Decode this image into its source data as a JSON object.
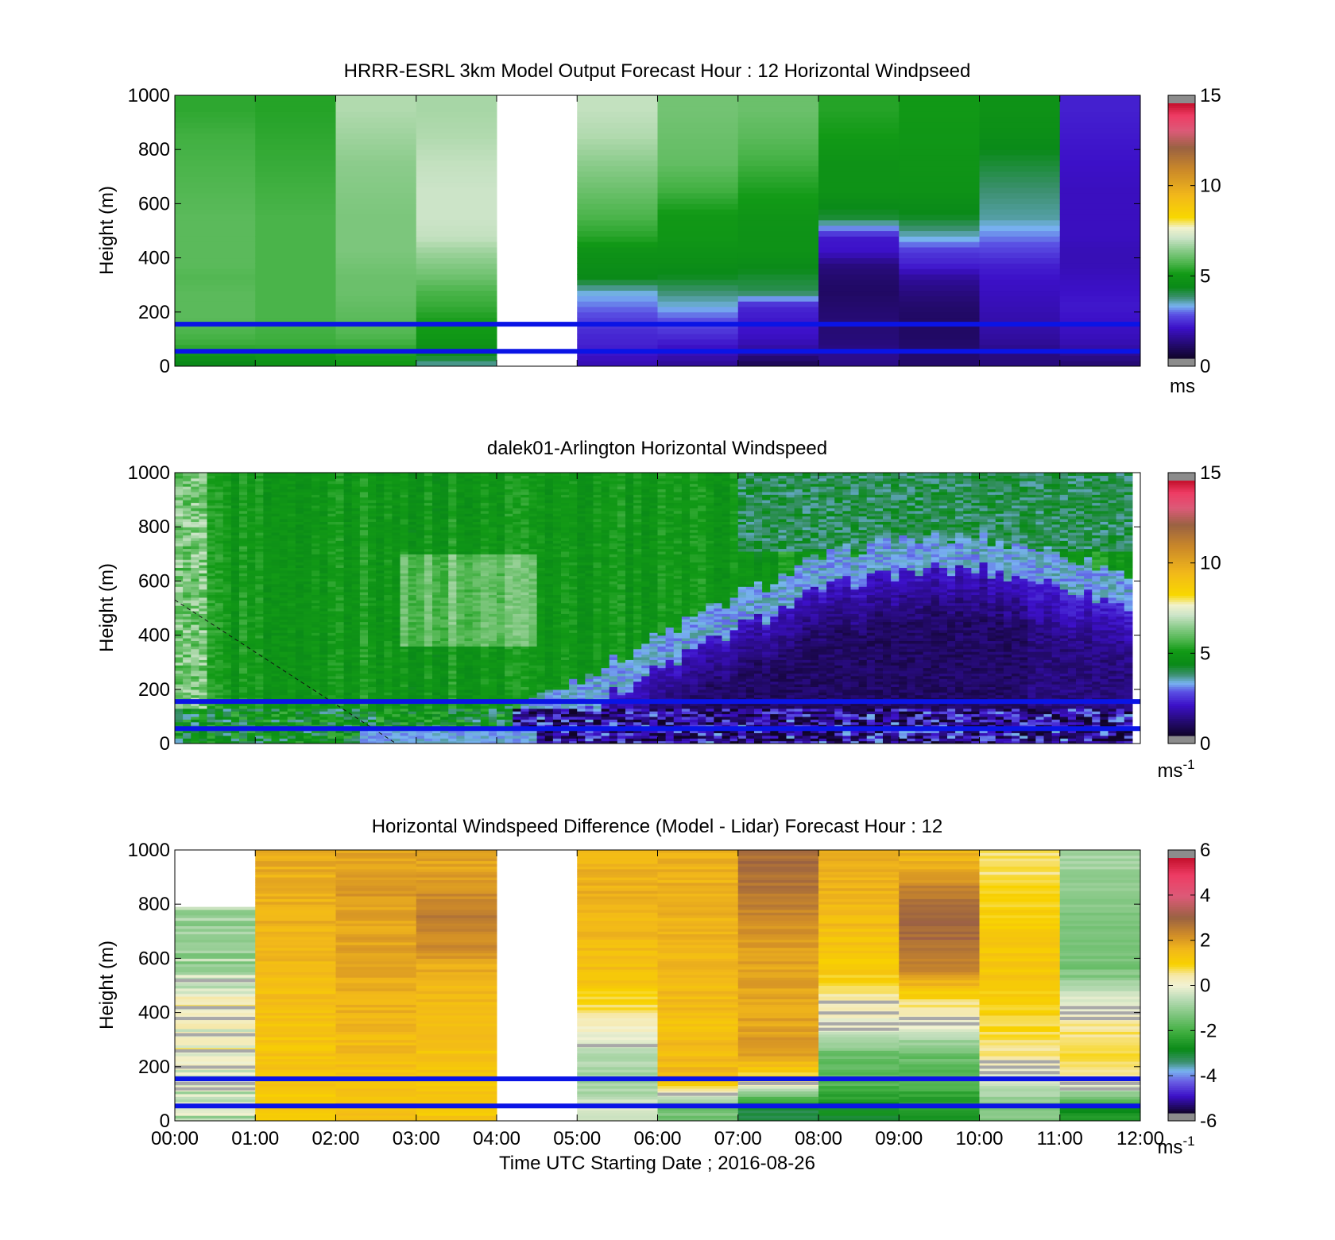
{
  "chart_data": [
    {
      "type": "heatmap",
      "title": "HRRR-ESRL 3km Model Output   Forecast Hour : 12 Horizontal Windpseed",
      "ylabel": "Height (m)",
      "xlabel": "",
      "ylim": [
        0,
        1000
      ],
      "yticks": [
        "0",
        "200",
        "400",
        "600",
        "800",
        "1000"
      ],
      "xlim_hours": [
        0,
        12
      ],
      "colorbar": {
        "min": 0,
        "max": 15,
        "ticks": [
          "0",
          "5",
          "10",
          "15"
        ],
        "unit": "ms",
        "unit_sup": ""
      },
      "reference_lines_m": [
        155,
        55
      ],
      "heights_m": [
        0,
        30,
        60,
        90,
        150,
        200,
        250,
        300,
        350,
        400,
        450,
        500,
        600,
        700,
        800,
        900,
        1000
      ],
      "columns": [
        {
          "start": 0,
          "end": 1,
          "values": [
            4.2,
            4.8,
            5.4,
            5.6,
            5.8,
            5.8,
            5.8,
            5.7,
            5.8,
            5.8,
            5.8,
            5.8,
            5.7,
            5.6,
            5.5,
            5.3
          ]
        },
        {
          "start": 1,
          "end": 2,
          "values": [
            4.6,
            4.9,
            5.4,
            5.5,
            5.6,
            5.6,
            5.6,
            5.6,
            5.6,
            5.6,
            5.6,
            5.6,
            5.5,
            5.4,
            5.3,
            5.2
          ]
        },
        {
          "start": 2,
          "end": 3,
          "values": [
            5.0,
            5.1,
            5.4,
            5.7,
            5.8,
            5.9,
            6.0,
            6.0,
            6.1,
            6.2,
            6.2,
            6.2,
            6.3,
            6.4,
            6.6,
            6.8
          ]
        },
        {
          "start": 3,
          "end": 4,
          "values": [
            3.5,
            4.4,
            4.6,
            4.9,
            5.1,
            5.4,
            5.6,
            6.0,
            6.3,
            6.6,
            7.0,
            7.1,
            7.1,
            7.0,
            6.8,
            6.7
          ]
        },
        {
          "start": 4,
          "end": 5,
          "values": []
        },
        {
          "start": 5,
          "end": 6,
          "values": [
            1.6,
            1.8,
            2.0,
            2.1,
            2.4,
            2.8,
            3.2,
            4.2,
            4.4,
            4.6,
            5.2,
            5.6,
            6.0,
            6.4,
            6.8,
            7.0
          ]
        },
        {
          "start": 6,
          "end": 7,
          "values": [
            1.3,
            1.6,
            1.8,
            2.2,
            2.6,
            3.2,
            3.6,
            4.1,
            4.4,
            4.6,
            4.8,
            4.9,
            5.5,
            5.9,
            6.0,
            6.1
          ]
        },
        {
          "start": 7,
          "end": 8,
          "values": [
            0.6,
            1.1,
            1.5,
            1.8,
            1.9,
            2.1,
            3.8,
            4.0,
            4.3,
            4.6,
            4.6,
            4.7,
            5.1,
            5.5,
            5.8,
            6.0
          ]
        },
        {
          "start": 8,
          "end": 9,
          "values": [
            1.1,
            1.2,
            1.0,
            0.9,
            0.9,
            0.8,
            0.7,
            0.8,
            1.0,
            1.8,
            1.9,
            4.0,
            4.6,
            4.6,
            5.0,
            5.2
          ]
        },
        {
          "start": 9,
          "end": 10,
          "values": [
            0.8,
            0.8,
            0.8,
            0.7,
            0.7,
            0.8,
            1.0,
            1.3,
            2.0,
            2.3,
            3.2,
            4.1,
            4.6,
            4.7,
            4.8,
            4.9
          ]
        },
        {
          "start": 10,
          "end": 11,
          "values": [
            1.0,
            1.0,
            1.2,
            1.4,
            1.5,
            1.6,
            1.7,
            1.8,
            2.0,
            2.4,
            2.8,
            3.4,
            3.6,
            4.0,
            4.4,
            4.6
          ]
        },
        {
          "start": 11,
          "end": 12,
          "values": [
            0.9,
            1.2,
            1.5,
            1.7,
            1.8,
            1.9,
            1.8,
            1.7,
            1.6,
            1.6,
            1.7,
            1.7,
            1.7,
            1.8,
            1.9,
            2.0
          ]
        }
      ]
    },
    {
      "type": "heatmap",
      "title": "dalek01-Arlington  Horizontal Windspeed",
      "ylabel": "Height (m)",
      "xlabel": "",
      "ylim": [
        0,
        1000
      ],
      "yticks": [
        "0",
        "200",
        "400",
        "600",
        "800",
        "1000"
      ],
      "xlim_hours": [
        0,
        12
      ],
      "data_end_hour": 11.85,
      "colorbar": {
        "min": 0,
        "max": 15,
        "ticks": [
          "0",
          "5",
          "10",
          "15"
        ],
        "unit": "ms",
        "unit_sup": "-1"
      },
      "reference_lines_m": [
        155,
        55
      ],
      "low_jet_base_hours": [
        0,
        1,
        2,
        3,
        4,
        5,
        6,
        7,
        8,
        9,
        10,
        11,
        11.85
      ],
      "low_jet_base_m": [
        -300,
        -250,
        -150,
        -50,
        50,
        170,
        330,
        480,
        620,
        690,
        700,
        640,
        560
      ],
      "dashed_line_points": [
        [
          0,
          530
        ],
        [
          2.75,
          0
        ]
      ]
    },
    {
      "type": "heatmap",
      "title": "Horizontal Windspeed Difference (Model - Lidar) Forecast Hour : 12",
      "ylabel": "Height (m)",
      "xlabel": "Time UTC  Starting Date ; 2016-08-26",
      "ylim": [
        0,
        1000
      ],
      "yticks": [
        "0",
        "200",
        "400",
        "600",
        "800",
        "1000"
      ],
      "xticks": [
        "00:00",
        "01:00",
        "02:00",
        "03:00",
        "04:00",
        "05:00",
        "06:00",
        "07:00",
        "08:00",
        "09:00",
        "10:00",
        "11:00",
        "12:00"
      ],
      "xlim_hours": [
        0,
        12
      ],
      "colorbar": {
        "min": -6,
        "max": 6,
        "ticks": [
          "-6",
          "-4",
          "-2",
          "0",
          "2",
          "4",
          "6"
        ],
        "unit": "ms",
        "unit_sup": "-1"
      },
      "reference_lines_m": [
        155,
        55
      ],
      "heights_m": [
        0,
        100,
        200,
        300,
        400,
        500,
        600,
        700,
        800,
        900,
        1000
      ],
      "columns": [
        {
          "start": 0,
          "end": 1,
          "top_m": 790,
          "values": [
            -0.5,
            -0.3,
            0.1,
            0.2,
            0.2,
            -0.7,
            -1.2,
            -1.0,
            null,
            null
          ]
        },
        {
          "start": 1,
          "end": 2,
          "values": [
            1.2,
            1.3,
            1.4,
            1.4,
            1.5,
            1.6,
            1.7,
            1.8,
            1.8,
            1.9
          ]
        },
        {
          "start": 2,
          "end": 3,
          "values": [
            1.4,
            1.4,
            1.6,
            1.7,
            1.8,
            1.9,
            2.0,
            2.0,
            2.2,
            2.0
          ]
        },
        {
          "start": 3,
          "end": 4,
          "values": [
            1.3,
            1.4,
            1.4,
            1.5,
            1.6,
            1.8,
            2.4,
            2.7,
            2.4,
            2.0
          ]
        },
        {
          "start": 4,
          "end": 5,
          "values": null
        },
        {
          "start": 5,
          "end": 6,
          "values": [
            -0.4,
            -1.0,
            -0.6,
            0.3,
            0.9,
            1.5,
            1.6,
            1.7,
            1.8,
            1.8
          ]
        },
        {
          "start": 6,
          "end": 7,
          "values": [
            -1.5,
            1.6,
            1.6,
            1.5,
            1.6,
            1.6,
            1.7,
            1.8,
            1.8,
            1.8
          ]
        },
        {
          "start": 7,
          "end": 8,
          "values": [
            -3.2,
            0.6,
            2.2,
            2.0,
            2.0,
            2.0,
            2.1,
            2.4,
            2.8,
            3.0
          ]
        },
        {
          "start": 8,
          "end": 9,
          "values": [
            -3.0,
            -1.8,
            -1.6,
            0.0,
            0.3,
            1.2,
            1.4,
            1.6,
            1.8,
            1.8
          ]
        },
        {
          "start": 9,
          "end": 10,
          "values": [
            -2.6,
            -2.0,
            -1.6,
            -0.1,
            0.8,
            2.4,
            3.0,
            3.2,
            2.6,
            1.8
          ]
        },
        {
          "start": 10,
          "end": 11,
          "values": [
            -1.2,
            -0.4,
            0.6,
            0.9,
            1.1,
            1.3,
            1.3,
            1.1,
            0.9,
            0.6
          ]
        },
        {
          "start": 11,
          "end": 12,
          "values": [
            -2.8,
            0.6,
            0.7,
            0.6,
            -0.3,
            -1.4,
            -1.6,
            -1.5,
            -1.2,
            -0.9
          ]
        }
      ]
    }
  ]
}
